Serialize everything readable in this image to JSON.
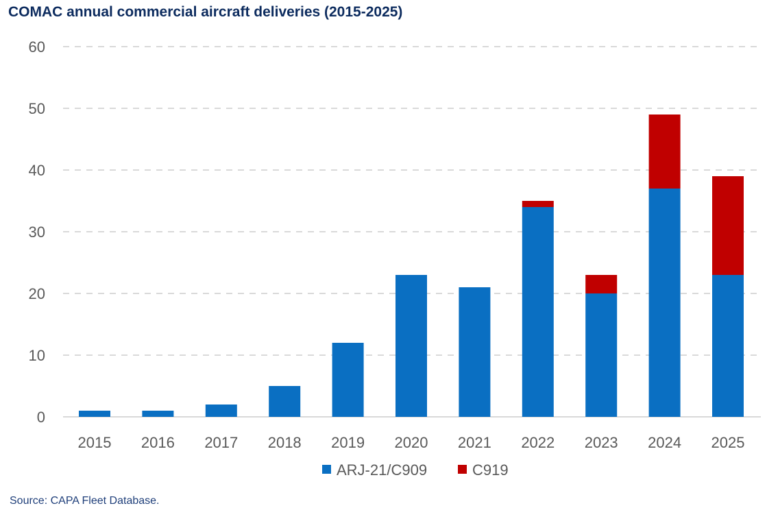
{
  "title": "COMAC annual commercial aircraft deliveries (2015-2025)",
  "source": "Source: CAPA Fleet Database.",
  "colors": {
    "arj21": "#0a6fc2",
    "c919": "#c00000",
    "grid": "#d9d9d9",
    "axis_text": "#595959",
    "title": "#0c2b5e"
  },
  "chart_data": {
    "type": "bar",
    "stacked": true,
    "title": "COMAC annual commercial aircraft deliveries (2015-2025)",
    "xlabel": "",
    "ylabel": "",
    "ylim": [
      0,
      60
    ],
    "yticks": [
      0,
      10,
      20,
      30,
      40,
      50,
      60
    ],
    "grid": true,
    "legend_position": "bottom",
    "categories": [
      "2015",
      "2016",
      "2017",
      "2018",
      "2019",
      "2020",
      "2021",
      "2022",
      "2023",
      "2024",
      "2025"
    ],
    "series": [
      {
        "name": "ARJ-21/C909",
        "values": [
          1,
          1,
          2,
          5,
          12,
          23,
          21,
          34,
          20,
          37,
          23
        ]
      },
      {
        "name": "C919",
        "values": [
          0,
          0,
          0,
          0,
          0,
          0,
          0,
          1,
          3,
          12,
          16
        ]
      }
    ]
  }
}
